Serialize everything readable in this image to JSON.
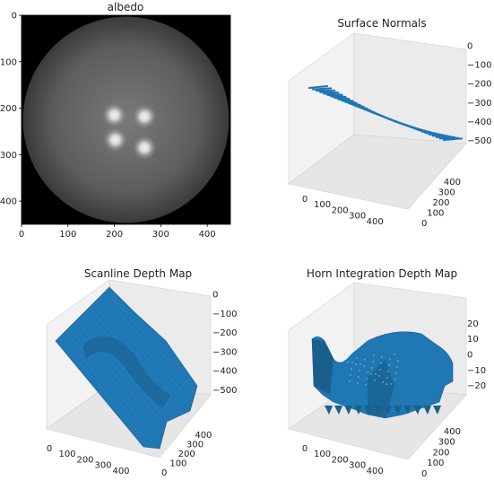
{
  "chart_data": [
    {
      "type": "heatmap",
      "title": "albedo",
      "xticks": [
        "0",
        "100",
        "200",
        "300",
        "400"
      ],
      "yticks": [
        "0",
        "100",
        "200",
        "300",
        "400"
      ],
      "xlim": [
        0,
        450
      ],
      "ylim": [
        450,
        0
      ],
      "colormap": "gray",
      "image": {
        "disc_center": [
          225,
          225
        ],
        "disc_radius": 222,
        "highlights": [
          [
            200,
            215
          ],
          [
            265,
            218
          ],
          [
            202,
            268
          ],
          [
            265,
            285
          ]
        ]
      }
    },
    {
      "type": "scatter",
      "title": "Surface Normals",
      "projection": "3d",
      "xticks": [
        "0",
        "100",
        "200",
        "300",
        "400"
      ],
      "yticks": [
        "0",
        "100",
        "200",
        "300",
        "400"
      ],
      "zticks": [
        "0",
        "−100",
        "−200",
        "−300",
        "−400",
        "−500"
      ],
      "xlim": [
        0,
        450
      ],
      "ylim": [
        0,
        450
      ],
      "zlim": [
        -580,
        40
      ],
      "series_color": "#1f77b4"
    },
    {
      "type": "area",
      "title": "Scanline Depth Map",
      "projection": "3d",
      "xticks": [
        "0",
        "100",
        "200",
        "300",
        "400"
      ],
      "yticks": [
        "0",
        "100",
        "200",
        "300",
        "400"
      ],
      "zticks": [
        "0",
        "−100",
        "−200",
        "−300",
        "−400",
        "−500"
      ],
      "xlim": [
        0,
        450
      ],
      "ylim": [
        0,
        450
      ],
      "zlim": [
        -580,
        40
      ],
      "series_color": "#1f77b4"
    },
    {
      "type": "area",
      "title": "Horn Integration Depth Map",
      "projection": "3d",
      "xticks": [
        "0",
        "100",
        "200",
        "300",
        "400"
      ],
      "yticks": [
        "0",
        "100",
        "200",
        "300",
        "400"
      ],
      "zticks": [
        "20",
        "10",
        "0",
        "−10",
        "−20"
      ],
      "xlim": [
        0,
        450
      ],
      "ylim": [
        0,
        450
      ],
      "zlim": [
        -28,
        28
      ],
      "series_color": "#1f77b4"
    }
  ]
}
